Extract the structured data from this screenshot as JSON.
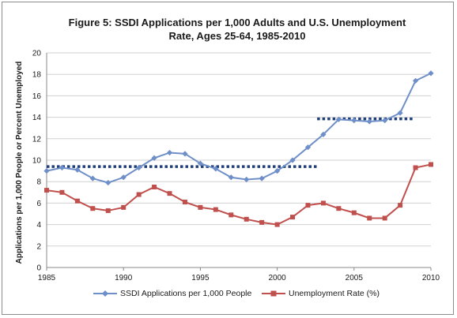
{
  "chart_data": {
    "type": "line",
    "title_lines": [
      "Figure 5: SSDI Applications per 1,000 Adults and U.S. Unemployment",
      "Rate, Ages 25-64, 1985-2010"
    ],
    "ylabel": "Applications per 1,000 People or Percent Unemployed",
    "xlabel": "",
    "xlim": [
      1985,
      2010
    ],
    "ylim": [
      0,
      20
    ],
    "x_ticks": [
      1985,
      1990,
      1995,
      2000,
      2005,
      2010
    ],
    "y_ticks": [
      0,
      2,
      4,
      6,
      8,
      10,
      12,
      14,
      16,
      18,
      20
    ],
    "grid": true,
    "legend_position": "bottom",
    "x": [
      1985,
      1986,
      1987,
      1988,
      1989,
      1990,
      1991,
      1992,
      1993,
      1994,
      1995,
      1996,
      1997,
      1998,
      1999,
      2000,
      2001,
      2002,
      2003,
      2004,
      2005,
      2006,
      2007,
      2008,
      2009,
      2010
    ],
    "series": [
      {
        "name": "SSDI Applications per 1,000 People",
        "color": "#6f8fc8",
        "marker": "diamond",
        "values": [
          9.0,
          9.3,
          9.1,
          8.3,
          7.9,
          8.4,
          9.3,
          10.2,
          10.7,
          10.6,
          9.7,
          9.2,
          8.4,
          8.2,
          8.3,
          9.0,
          10.0,
          11.2,
          12.4,
          13.8,
          13.7,
          13.6,
          13.7,
          14.4,
          17.4,
          18.1
        ]
      },
      {
        "name": "Unemployment Rate (%)",
        "color": "#c0504d",
        "marker": "square",
        "values": [
          7.2,
          7.0,
          6.2,
          5.5,
          5.3,
          5.6,
          6.8,
          7.5,
          6.9,
          6.1,
          5.6,
          5.4,
          4.9,
          4.5,
          4.2,
          4.0,
          4.7,
          5.8,
          6.0,
          5.5,
          5.1,
          4.6,
          4.6,
          5.8,
          9.3,
          9.6
        ]
      }
    ],
    "reference_lines": [
      {
        "x_range": [
          1985,
          2002.6
        ],
        "y": 9.4,
        "color": "#1f3e7a",
        "style": "dotted"
      },
      {
        "x_range": [
          2002.6,
          2008.9
        ],
        "y": 13.85,
        "color": "#1f3e7a",
        "style": "dotted"
      }
    ]
  }
}
